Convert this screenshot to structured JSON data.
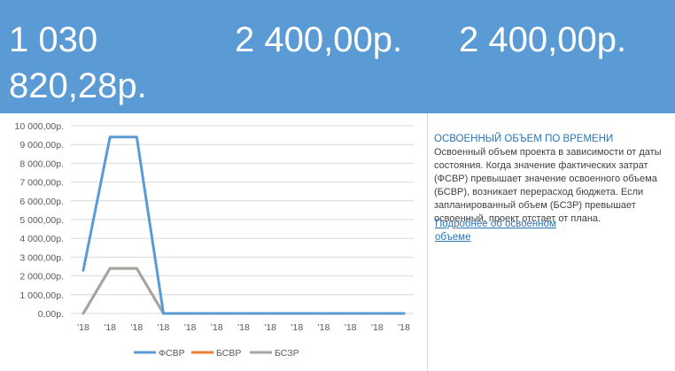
{
  "metrics": {
    "first": "1 030 820,28р.",
    "second": "2 400,00р.",
    "third": "2 400,00р."
  },
  "colors": {
    "banner": "#5b9bd5",
    "series_fsvr": "#5b9bd5",
    "series_bsvr": "#ed7d31",
    "series_bszr": "#a5a5a5"
  },
  "info": {
    "title": "ОСВОЕННЫЙ ОБЪЕМ ПО ВРЕМЕНИ",
    "body": "Освоенный объем проекта в зависимости от даты состояния. Когда значение фактических затрат (ФСВР) превышает значение освоенного объема (БСВР), возникает перерасход бюджета. Если запланированный объем (БСЗР) превышает освоенный, проект отстает от плана.",
    "link": "Подробнее об освоенном объеме"
  },
  "chart_data": {
    "type": "line",
    "title": "",
    "xlabel": "",
    "ylabel": "",
    "categories": [
      "'18",
      "'18",
      "'18",
      "'18",
      "'18",
      "'18",
      "'18",
      "'18",
      "'18",
      "'18",
      "'18",
      "'18",
      "'18"
    ],
    "y_ticks": [
      "0,00р.",
      "1 000,00р.",
      "2 000,00р.",
      "3 000,00р.",
      "4 000,00р.",
      "5 000,00р.",
      "6 000,00р.",
      "7 000,00р.",
      "8 000,00р.",
      "9 000,00р.",
      "10 000,00р."
    ],
    "ylim": [
      0,
      10000
    ],
    "grid": true,
    "legend_position": "bottom",
    "series": [
      {
        "name": "ФСВР",
        "color": "#5b9bd5",
        "values": [
          2300,
          9400,
          9400,
          0,
          0,
          0,
          0,
          0,
          0,
          0,
          0,
          0,
          0
        ]
      },
      {
        "name": "БСВР",
        "color": "#ed7d31",
        "values": [
          0,
          2400,
          2400,
          0,
          0,
          0,
          0,
          0,
          0,
          0,
          0,
          0,
          0
        ]
      },
      {
        "name": "БСЗР",
        "color": "#a5a5a5",
        "values": [
          0,
          2400,
          2400,
          0,
          0,
          0,
          0,
          0,
          0,
          0,
          0,
          0,
          0
        ]
      }
    ]
  }
}
